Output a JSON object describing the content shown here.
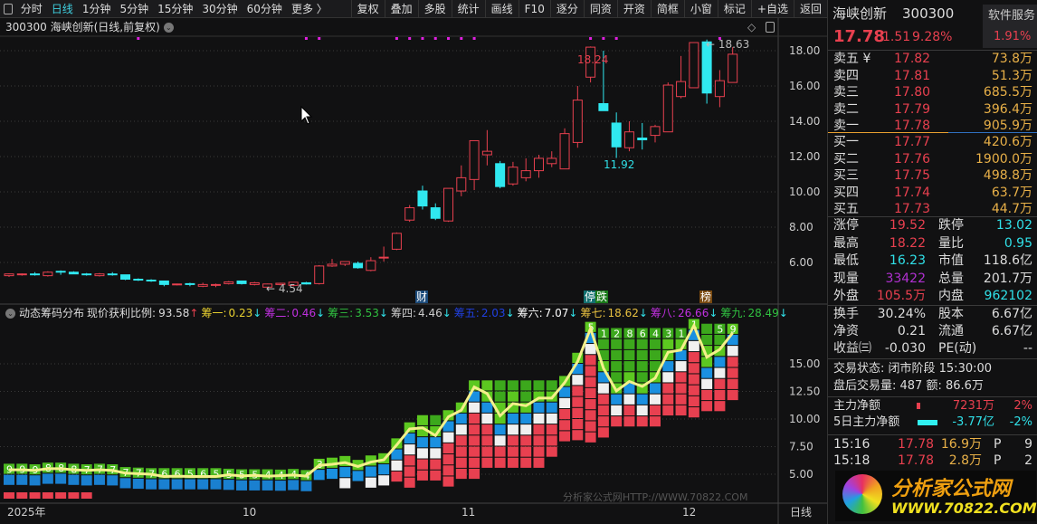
{
  "toolbar": {
    "periods": [
      "分时",
      "日线",
      "1分钟",
      "5分钟",
      "15分钟",
      "30分钟",
      "60分钟",
      "更多 〉"
    ],
    "active": "日线",
    "buttons": [
      "复权",
      "叠加",
      "多股",
      "统计",
      "画线",
      "F10",
      "逐分",
      "同资",
      "开资",
      "简框",
      "小窗",
      "标记",
      "+自选",
      "返回"
    ]
  },
  "title": "300300 海峡创新(日线,前复权)",
  "price_axis": [
    "18.00",
    "16.00",
    "14.00",
    "12.00",
    "10.00",
    "8.00",
    "6.00"
  ],
  "lower_axis": [
    "15.00",
    "12.50",
    "10.00",
    "7.50",
    "5.00"
  ],
  "date_axis": [
    "2025年",
    "10",
    "11",
    "12"
  ],
  "period_label": "日线",
  "annotations": {
    "high1": "18.24",
    "low1": "11.92",
    "high2": "← 18.63",
    "low0": "← 4.54"
  },
  "markers": [
    {
      "text": "财",
      "bg": "#1b4a7a"
    },
    {
      "text": "停",
      "bg": "#137070"
    },
    {
      "text": "跌",
      "bg": "#1a7a1a"
    },
    {
      "text": "榜",
      "bg": "#7a4a10"
    }
  ],
  "indicator": {
    "name": "动态筹码分布",
    "profit_label": "现价获利比例:",
    "profit": "93.58",
    "items": [
      {
        "label": "筹一:",
        "value": "0.23",
        "color": "#e8d030"
      },
      {
        "label": "筹二:",
        "value": "0.46",
        "color": "#c030e0"
      },
      {
        "label": "筹三:",
        "value": "3.53",
        "color": "#30c040"
      },
      {
        "label": "筹四:",
        "value": "4.46",
        "color": "#cccccc"
      },
      {
        "label": "筹五:",
        "value": "2.03",
        "color": "#2040e0"
      },
      {
        "label": "筹六:",
        "value": "7.07",
        "color": "#ffffff"
      },
      {
        "label": "筹七:",
        "value": "18.62",
        "color": "#e8c040"
      },
      {
        "label": "筹八:",
        "value": "26.66",
        "color": "#c030e0"
      },
      {
        "label": "筹九:",
        "value": "28.49",
        "color": "#30c040"
      }
    ]
  },
  "chart": {
    "type": "candlestick",
    "up_color": "#e8404f",
    "down_color": "#30e8f0",
    "candles": [
      [
        5.25,
        5.38,
        5.18,
        5.35
      ],
      [
        5.3,
        5.38,
        5.25,
        5.35
      ],
      [
        5.35,
        5.45,
        5.25,
        5.3
      ],
      [
        5.25,
        5.5,
        5.2,
        5.45
      ],
      [
        5.5,
        5.55,
        5.3,
        5.45
      ],
      [
        5.45,
        5.5,
        5.35,
        5.35
      ],
      [
        5.35,
        5.4,
        5.25,
        5.3
      ],
      [
        5.25,
        5.4,
        5.2,
        5.35
      ],
      [
        5.35,
        5.45,
        5.25,
        5.3
      ],
      [
        5.3,
        5.3,
        5.0,
        5.05
      ],
      [
        5.05,
        5.1,
        4.95,
        5.0
      ],
      [
        5.0,
        5.05,
        4.9,
        4.95
      ],
      [
        4.95,
        4.95,
        4.65,
        4.75
      ],
      [
        4.75,
        4.8,
        4.7,
        4.78
      ],
      [
        4.8,
        4.85,
        4.65,
        4.75
      ],
      [
        4.65,
        4.85,
        4.6,
        4.75
      ],
      [
        4.7,
        4.8,
        4.6,
        4.75
      ],
      [
        4.8,
        4.95,
        4.75,
        4.9
      ],
      [
        4.95,
        4.95,
        4.75,
        4.8
      ],
      [
        4.75,
        4.9,
        4.7,
        4.85
      ],
      [
        4.6,
        4.8,
        4.54,
        4.78
      ],
      [
        4.75,
        4.85,
        4.7,
        4.82
      ],
      [
        4.7,
        4.9,
        4.65,
        4.88
      ],
      [
        4.85,
        4.9,
        4.75,
        4.78
      ],
      [
        4.8,
        5.85,
        4.75,
        5.8
      ],
      [
        5.8,
        6.2,
        5.75,
        5.9
      ],
      [
        5.9,
        6.05,
        5.8,
        6.05
      ],
      [
        5.95,
        6.05,
        5.65,
        5.7
      ],
      [
        5.55,
        6.3,
        5.5,
        6.1
      ],
      [
        6.25,
        6.9,
        6.05,
        6.3
      ],
      [
        6.75,
        7.7,
        6.7,
        7.65
      ],
      [
        8.4,
        9.25,
        8.3,
        9.1
      ],
      [
        10.05,
        10.35,
        9.0,
        9.2
      ],
      [
        9.1,
        9.35,
        8.4,
        8.5
      ],
      [
        8.35,
        10.2,
        8.3,
        10.2
      ],
      [
        10.05,
        11.5,
        9.75,
        10.8
      ],
      [
        10.7,
        12.9,
        10.1,
        12.9
      ],
      [
        12.1,
        13.5,
        11.5,
        12.3
      ],
      [
        11.6,
        11.75,
        10.2,
        10.3
      ],
      [
        10.45,
        11.7,
        10.35,
        11.4
      ],
      [
        10.8,
        11.9,
        10.6,
        11.2
      ],
      [
        11.2,
        12.1,
        10.8,
        11.9
      ],
      [
        11.6,
        12.3,
        11.4,
        11.9
      ],
      [
        11.3,
        13.6,
        11.3,
        13.3
      ],
      [
        12.8,
        16.0,
        12.5,
        15.2
      ],
      [
        16.5,
        18.24,
        16.2,
        18.2
      ],
      [
        15.0,
        18.0,
        14.6,
        14.6
      ],
      [
        13.9,
        14.5,
        11.92,
        12.55
      ],
      [
        12.5,
        14.0,
        12.3,
        13.4
      ],
      [
        13.05,
        13.9,
        12.4,
        12.95
      ],
      [
        13.2,
        13.8,
        12.8,
        13.7
      ],
      [
        13.4,
        16.2,
        13.4,
        16.05
      ],
      [
        15.4,
        17.7,
        15.3,
        16.25
      ],
      [
        15.9,
        18.46,
        15.9,
        18.46
      ],
      [
        18.5,
        18.63,
        15.0,
        15.6
      ],
      [
        15.4,
        16.9,
        14.8,
        16.3
      ],
      [
        16.2,
        18.2,
        16.2,
        17.8
      ]
    ],
    "signal_dots": [
      10,
      23,
      24,
      30,
      31,
      32,
      33,
      34,
      35,
      36,
      45,
      46,
      47,
      55
    ],
    "chip_top_labels": [
      "9",
      "9",
      "9",
      "8",
      "8",
      "8",
      "7",
      "7",
      "7",
      "7",
      "7",
      "7",
      "6",
      "6",
      "5",
      "6",
      "5",
      "5",
      "5",
      "5",
      "4",
      "4",
      "4",
      "4",
      "3",
      "",
      "",
      "",
      "",
      "",
      "",
      "",
      "",
      "",
      "",
      "",
      "",
      "",
      "",
      "",
      "",
      "",
      "",
      "",
      "",
      "5",
      "1",
      "2",
      "8",
      "6",
      "4",
      "3",
      "1",
      "1",
      "",
      "5",
      "9"
    ]
  },
  "quote": {
    "name": "海峡创新",
    "code": "300300",
    "price": "17.78",
    "change": "1.51",
    "pct": "9.28%",
    "sector": "软件服务",
    "sector_pct": "1.91%",
    "asks": [
      {
        "label": "卖五 ¥",
        "price": "17.82",
        "vol": "73.8万"
      },
      {
        "label": "卖四",
        "price": "17.81",
        "vol": "51.3万"
      },
      {
        "label": "卖三",
        "price": "17.80",
        "vol": "685.5万"
      },
      {
        "label": "卖二",
        "price": "17.79",
        "vol": "396.4万"
      },
      {
        "label": "卖一",
        "price": "17.78",
        "vol": "905.9万"
      }
    ],
    "bids": [
      {
        "label": "买一",
        "price": "17.77",
        "vol": "420.6万"
      },
      {
        "label": "买二",
        "price": "17.76",
        "vol": "1900.0万"
      },
      {
        "label": "买三",
        "price": "17.75",
        "vol": "498.8万"
      },
      {
        "label": "买四",
        "price": "17.74",
        "vol": "63.7万"
      },
      {
        "label": "买五",
        "price": "17.73",
        "vol": "44.7万"
      }
    ],
    "stats": [
      {
        "l1": "涨停",
        "v1": "19.52",
        "c1": "red",
        "l2": "跌停",
        "v2": "13.02",
        "c2": "cyan"
      },
      {
        "l1": "最高",
        "v1": "18.22",
        "c1": "red",
        "l2": "量比",
        "v2": "0.95",
        "c2": "cyan"
      },
      {
        "l1": "最低",
        "v1": "16.23",
        "c1": "cyan",
        "l2": "市值",
        "v2": "118.6亿",
        "c2": "wh"
      },
      {
        "l1": "现量",
        "v1": "33422",
        "c1": "mag",
        "l2": "总量",
        "v2": "201.7万",
        "c2": "wh"
      },
      {
        "l1": "外盘",
        "v1": "105.5万",
        "c1": "red",
        "l2": "内盘",
        "v2": "962102",
        "c2": "cyan"
      }
    ],
    "fund": [
      {
        "l1": "换手",
        "v1": "30.24%",
        "l2": "股本",
        "v2": "6.67亿"
      },
      {
        "l1": "净资",
        "v1": "0.21",
        "l2": "流通",
        "v2": "6.67亿"
      },
      {
        "l1": "收益㈢",
        "v1": "-0.030",
        "l2": "PE(动)",
        "v2": "--"
      }
    ],
    "status": "交易状态: 闭市阶段 15:30:00",
    "after": "盘后交易量: 487  额: 86.6万",
    "flow": [
      {
        "label": "主力净额",
        "value": "7231万",
        "pct": "2%",
        "color": "red"
      },
      {
        "label": "5日主力净额",
        "value": "-3.77亿",
        "pct": "-2%",
        "color": "cyan"
      }
    ],
    "ticks": [
      {
        "time": "15:16",
        "price": "17.78",
        "vol": "16.9万",
        "flag": "P",
        "n": "9"
      },
      {
        "time": "15:18",
        "price": "17.78",
        "vol": "2.8万",
        "flag": "P",
        "n": "2"
      }
    ]
  },
  "watermark": {
    "text": "分析家公式网",
    "url": "WWW.70822.COM",
    "faint": "分析家公式网HTTP://WWW.70822.COM"
  }
}
